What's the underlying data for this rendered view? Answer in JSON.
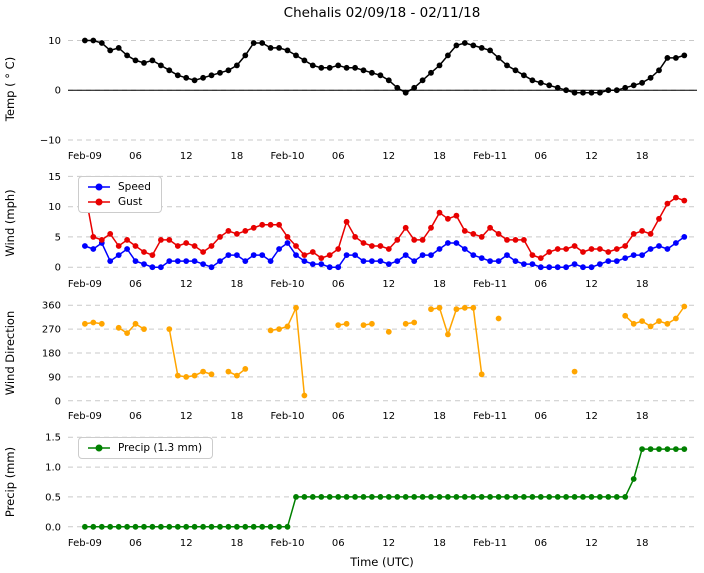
{
  "title": "Chehalis 02/09/18 - 02/11/18",
  "xlabel": "Time (UTC)",
  "x_axis": {
    "xlim": [
      -2,
      72.5
    ],
    "tick_values": [
      0,
      6,
      12,
      18,
      24,
      30,
      36,
      42,
      48,
      54,
      60,
      66
    ],
    "tick_labels": [
      "Feb-09",
      "06",
      "12",
      "18",
      "Feb-10",
      "06",
      "12",
      "18",
      "Feb-11",
      "06",
      "12",
      "18"
    ]
  },
  "chart_data": [
    {
      "type": "line",
      "name": "temperature",
      "ylabel": "Temp ( ° C)",
      "ylim": [
        -10.8,
        11.3
      ],
      "yticks": [
        10,
        0,
        -10
      ],
      "ytick_labels": [
        "10",
        "0",
        "−10"
      ],
      "axhline": 0,
      "grid": true,
      "series": [
        {
          "name": "Temp",
          "color": "#000000",
          "values": [
            10,
            10,
            9.5,
            8,
            8.5,
            7,
            6,
            5.5,
            6,
            5,
            4,
            3,
            2.5,
            2,
            2.5,
            3,
            3.5,
            4,
            5,
            7,
            9.5,
            9.5,
            8.5,
            8.5,
            8,
            7,
            6,
            5,
            4.5,
            4.5,
            5,
            4.5,
            4.5,
            4,
            3.5,
            3,
            2,
            0.5,
            -0.5,
            0.5,
            2,
            3.5,
            5,
            7,
            9,
            9.5,
            9,
            8.5,
            8,
            6.5,
            5,
            4,
            3,
            2,
            1.5,
            1,
            0.5,
            0,
            -0.5,
            -0.5,
            -0.5,
            -0.5,
            0,
            0,
            0.5,
            1,
            1.5,
            2.5,
            4,
            6.5,
            6.5,
            7
          ]
        }
      ]
    },
    {
      "type": "line",
      "name": "wind",
      "ylabel": "Wind (mph)",
      "ylim": [
        -0.8,
        15.4
      ],
      "yticks": [
        15,
        10,
        5,
        0
      ],
      "ytick_labels": [
        "15",
        "10",
        "5",
        "0"
      ],
      "grid": true,
      "series": [
        {
          "name": "Speed",
          "color": "#0000ff",
          "values": [
            3.5,
            3,
            4,
            1,
            2,
            3,
            1,
            0.5,
            0,
            0,
            1,
            1,
            1,
            1,
            0.5,
            0,
            1,
            2,
            2,
            1,
            2,
            2,
            1,
            3,
            4,
            2,
            1,
            0.5,
            0.5,
            0,
            0,
            2,
            2,
            1,
            1,
            1,
            0.5,
            1,
            2,
            1,
            2,
            2,
            3,
            4,
            4,
            3,
            2,
            1.5,
            1,
            1,
            2,
            1,
            0.5,
            0.5,
            0,
            0,
            0,
            0,
            0.5,
            0,
            0,
            0.5,
            1,
            1,
            1.5,
            2,
            2,
            3,
            3.5,
            3,
            4,
            5
          ]
        },
        {
          "name": "Gust",
          "color": "#e80000",
          "values": [
            12.5,
            5,
            4.5,
            5.5,
            3.5,
            4.5,
            3.5,
            2.5,
            2,
            4.5,
            4.5,
            3.5,
            4,
            3.5,
            2.5,
            3.5,
            5,
            6,
            5.5,
            6,
            6.5,
            7,
            7,
            7,
            5,
            3.5,
            2,
            2.5,
            1.5,
            2,
            3,
            7.5,
            5,
            4,
            3.5,
            3.5,
            3,
            4.5,
            6.5,
            4.5,
            4.5,
            6.5,
            9,
            8,
            8.5,
            6,
            5.5,
            5,
            6.5,
            5.5,
            4.5,
            4.5,
            4.5,
            2,
            1.5,
            2.5,
            3,
            3,
            3.5,
            2.5,
            3,
            3,
            2.5,
            3,
            3.5,
            5.5,
            6,
            5.5,
            8,
            10.5,
            11.5,
            11
          ]
        }
      ]
    },
    {
      "type": "line",
      "name": "wind-direction",
      "ylabel": "Wind Direction",
      "ylim": [
        -12,
        372
      ],
      "yticks": [
        360,
        270,
        180,
        90,
        0
      ],
      "ytick_labels": [
        "360",
        "270",
        "180",
        "90",
        "0"
      ],
      "grid": true,
      "series": [
        {
          "name": "Direction",
          "color": "#ffa500",
          "values": [
            290,
            295,
            290,
            null,
            275,
            255,
            290,
            270,
            null,
            null,
            270,
            95,
            90,
            95,
            110,
            100,
            null,
            110,
            95,
            120,
            null,
            null,
            265,
            270,
            280,
            350,
            20,
            null,
            null,
            null,
            285,
            290,
            null,
            285,
            290,
            null,
            260,
            null,
            290,
            295,
            null,
            345,
            350,
            250,
            345,
            350,
            350,
            100,
            null,
            310,
            null,
            null,
            null,
            null,
            null,
            null,
            null,
            null,
            110,
            null,
            null,
            null,
            null,
            null,
            320,
            290,
            300,
            280,
            300,
            290,
            310,
            355
          ]
        }
      ]
    },
    {
      "type": "line",
      "name": "precipitation",
      "ylabel": "Precip (mm)",
      "ylim": [
        -0.07,
        1.57
      ],
      "yticks": [
        1.5,
        1.0,
        0.5,
        0.0
      ],
      "ytick_labels": [
        "1.5",
        "1.0",
        "0.5",
        "0.0"
      ],
      "grid": true,
      "series": [
        {
          "name": "Precip (1.3 mm)",
          "color": "#008000",
          "values": [
            0,
            0,
            0,
            0,
            0,
            0,
            0,
            0,
            0,
            0,
            0,
            0,
            0,
            0,
            0,
            0,
            0,
            0,
            0,
            0,
            0,
            0,
            0,
            0,
            0,
            0.5,
            0.5,
            0.5,
            0.5,
            0.5,
            0.5,
            0.5,
            0.5,
            0.5,
            0.5,
            0.5,
            0.5,
            0.5,
            0.5,
            0.5,
            0.5,
            0.5,
            0.5,
            0.5,
            0.5,
            0.5,
            0.5,
            0.5,
            0.5,
            0.5,
            0.5,
            0.5,
            0.5,
            0.5,
            0.5,
            0.5,
            0.5,
            0.5,
            0.5,
            0.5,
            0.5,
            0.5,
            0.5,
            0.5,
            0.5,
            0.8,
            1.3,
            1.3,
            1.3,
            1.3,
            1.3,
            1.3
          ]
        }
      ]
    }
  ]
}
